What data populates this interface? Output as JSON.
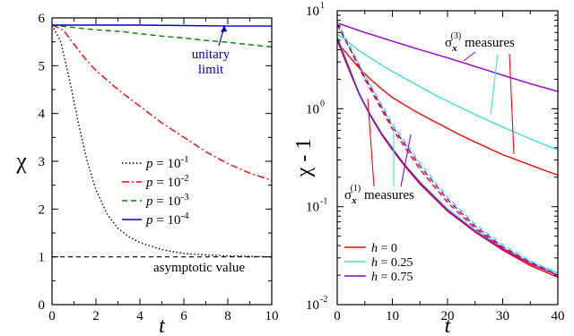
{
  "chart_data": [
    {
      "type": "line",
      "title": "",
      "xlabel": "t",
      "ylabel": "χ",
      "xlim": [
        0,
        10
      ],
      "ylim": [
        0,
        6
      ],
      "x_ticks": [
        0,
        2,
        4,
        6,
        8,
        10
      ],
      "y_ticks": [
        0,
        1,
        2,
        3,
        4,
        5,
        6
      ],
      "x_tick_labels": [
        "0",
        "2",
        "4",
        "6",
        "8",
        "10"
      ],
      "y_tick_labels": [
        "0",
        "1",
        "2",
        "3",
        "4",
        "5",
        "6"
      ],
      "legend_placement": "center-left",
      "series": [
        {
          "name": "p = 10^-1",
          "legend_base": "p = 10",
          "legend_exp": "-1",
          "color": "#000000",
          "dash": "dotted",
          "x": [
            0,
            0.4,
            0.8,
            1.2,
            1.6,
            2,
            2.5,
            3,
            3.5,
            4,
            5,
            6,
            7,
            8,
            9,
            10
          ],
          "y": [
            5.85,
            5.5,
            4.7,
            3.8,
            3.0,
            2.4,
            1.9,
            1.6,
            1.42,
            1.3,
            1.15,
            1.07,
            1.04,
            1.02,
            1.01,
            1.0
          ]
        },
        {
          "name": "p = 10^-2",
          "legend_base": "p = 10",
          "legend_exp": "-2",
          "color": "#ff0000",
          "dash": "dashdot",
          "x": [
            0,
            0.5,
            1,
            1.5,
            2,
            3,
            4,
            5,
            6,
            7,
            8,
            9,
            10
          ],
          "y": [
            5.85,
            5.75,
            5.45,
            5.15,
            4.9,
            4.5,
            4.15,
            3.8,
            3.5,
            3.2,
            2.95,
            2.75,
            2.6
          ]
        },
        {
          "name": "p = 10^-3",
          "legend_base": "p = 10",
          "legend_exp": "-3",
          "color": "#008000",
          "dash": "dashed",
          "x": [
            0,
            1,
            2,
            3,
            4,
            5,
            6,
            7,
            8,
            9,
            10
          ],
          "y": [
            5.85,
            5.8,
            5.75,
            5.72,
            5.67,
            5.62,
            5.58,
            5.53,
            5.49,
            5.44,
            5.39
          ]
        },
        {
          "name": "p = 10^-4",
          "legend_base": "p = 10",
          "legend_exp": "-4",
          "color": "#0000cc",
          "dash": "solid",
          "x": [
            0,
            2,
            4,
            6,
            8,
            10
          ],
          "y": [
            5.85,
            5.85,
            5.85,
            5.84,
            5.83,
            5.83
          ]
        }
      ],
      "reference_line": {
        "y": 1,
        "color": "#000000",
        "dash": "dashed"
      },
      "annotations": [
        {
          "text": "unitary",
          "color": "#0000cc"
        },
        {
          "text": "limit",
          "color": "#0000cc"
        },
        {
          "text": "asymptotic value",
          "color": "#000000"
        }
      ]
    },
    {
      "type": "line",
      "title": "",
      "xlabel": "t",
      "ylabel": "χ - 1",
      "yscale": "log",
      "xlim": [
        0,
        40
      ],
      "ylim": [
        0.01,
        10
      ],
      "x_ticks": [
        0,
        10,
        20,
        30,
        40
      ],
      "x_tick_labels": [
        "0",
        "10",
        "20",
        "30",
        "40"
      ],
      "y_ticks": [
        0.01,
        0.1,
        1,
        10
      ],
      "y_tick_base": "10",
      "y_tick_exps": [
        "-2",
        "-1",
        "0",
        "1"
      ],
      "legend_placement": "bottom-left",
      "legend": [
        {
          "label": "h = 0",
          "var": "h",
          "rest": " = 0",
          "color": "#ff0000"
        },
        {
          "label": "h = 0.25",
          "var": "h",
          "rest": " = 0.25",
          "color": "#40e0d0"
        },
        {
          "label": "h = 0.75",
          "var": "h",
          "rest": " = 0.75",
          "color": "#9400d3"
        }
      ],
      "series": [
        {
          "group": "σx(3)",
          "h": 0,
          "color": "#ff0000",
          "dash": "solid",
          "x": [
            0,
            2,
            4,
            6,
            8,
            10,
            14,
            18,
            22,
            26,
            30,
            34,
            38,
            40
          ],
          "y": [
            4.8,
            3.5,
            2.6,
            2.0,
            1.6,
            1.3,
            0.95,
            0.72,
            0.55,
            0.43,
            0.34,
            0.28,
            0.23,
            0.21
          ]
        },
        {
          "group": "σx(3)",
          "h": 0.25,
          "color": "#40e0d0",
          "dash": "solid",
          "x": [
            0,
            2,
            4,
            6,
            8,
            10,
            14,
            18,
            22,
            26,
            30,
            34,
            38,
            40
          ],
          "y": [
            5.8,
            4.8,
            3.9,
            3.3,
            2.8,
            2.4,
            1.8,
            1.35,
            1.05,
            0.82,
            0.65,
            0.52,
            0.42,
            0.38
          ]
        },
        {
          "group": "σx(3)",
          "h": 0.75,
          "color": "#9400d3",
          "dash": "solid",
          "x": [
            0,
            5,
            10,
            15,
            20,
            25,
            30,
            35,
            40
          ],
          "y": [
            7.5,
            6.0,
            4.9,
            4.0,
            3.3,
            2.7,
            2.2,
            1.8,
            1.5
          ]
        },
        {
          "group": "σx(1)",
          "h": 0,
          "color": "#ff0000",
          "dash": "solid",
          "x": [
            0,
            2,
            4,
            6,
            8,
            10,
            12,
            15,
            20,
            25,
            30,
            35,
            40
          ],
          "y": [
            5.0,
            2.6,
            1.4,
            0.85,
            0.55,
            0.38,
            0.27,
            0.17,
            0.09,
            0.055,
            0.036,
            0.025,
            0.019
          ]
        },
        {
          "group": "σx(1)",
          "h": 0.25,
          "color": "#40e0d0",
          "dash": "solid",
          "x": [
            0,
            2,
            4,
            6,
            8,
            10,
            12,
            15,
            20,
            25,
            30,
            35,
            40
          ],
          "y": [
            5.5,
            2.8,
            1.45,
            0.88,
            0.57,
            0.4,
            0.28,
            0.18,
            0.095,
            0.058,
            0.038,
            0.027,
            0.021
          ]
        },
        {
          "group": "σx(1)",
          "h": 0.75,
          "color": "#9400d3",
          "dash": "solid",
          "x": [
            0,
            2,
            4,
            6,
            8,
            10,
            12,
            15,
            20,
            25,
            30,
            35,
            40
          ],
          "y": [
            5.2,
            2.7,
            1.4,
            0.86,
            0.56,
            0.39,
            0.275,
            0.175,
            0.092,
            0.056,
            0.037,
            0.026,
            0.02
          ]
        },
        {
          "group": "dashed",
          "h": 0,
          "color": "#ff0000",
          "dash": "dashed",
          "x": [
            0,
            5,
            10,
            15,
            20,
            25,
            30,
            35,
            40
          ],
          "y": [
            7.5,
            2.0,
            0.62,
            0.24,
            0.11,
            0.06,
            0.038,
            0.026,
            0.02
          ]
        },
        {
          "group": "dashed",
          "h": 0.25,
          "color": "#40e0d0",
          "dash": "dashed",
          "x": [
            0,
            5,
            10,
            15,
            20,
            25,
            30,
            35,
            40
          ],
          "y": [
            7.8,
            2.2,
            0.7,
            0.28,
            0.125,
            0.066,
            0.041,
            0.028,
            0.021
          ]
        },
        {
          "group": "dashed",
          "h": 0.75,
          "color": "#9400d3",
          "dash": "dashed",
          "x": [
            0,
            5,
            10,
            15,
            20,
            25,
            30,
            35,
            40
          ],
          "y": [
            7.2,
            2.1,
            0.66,
            0.26,
            0.118,
            0.063,
            0.039,
            0.027,
            0.02
          ]
        }
      ],
      "annotations": [
        {
          "text": "σ",
          "sub": "x",
          "sup": "(3)",
          "rest": " measures"
        },
        {
          "text": "σ",
          "sub": "x",
          "sup": "(1)",
          "rest": " measures"
        }
      ]
    }
  ]
}
